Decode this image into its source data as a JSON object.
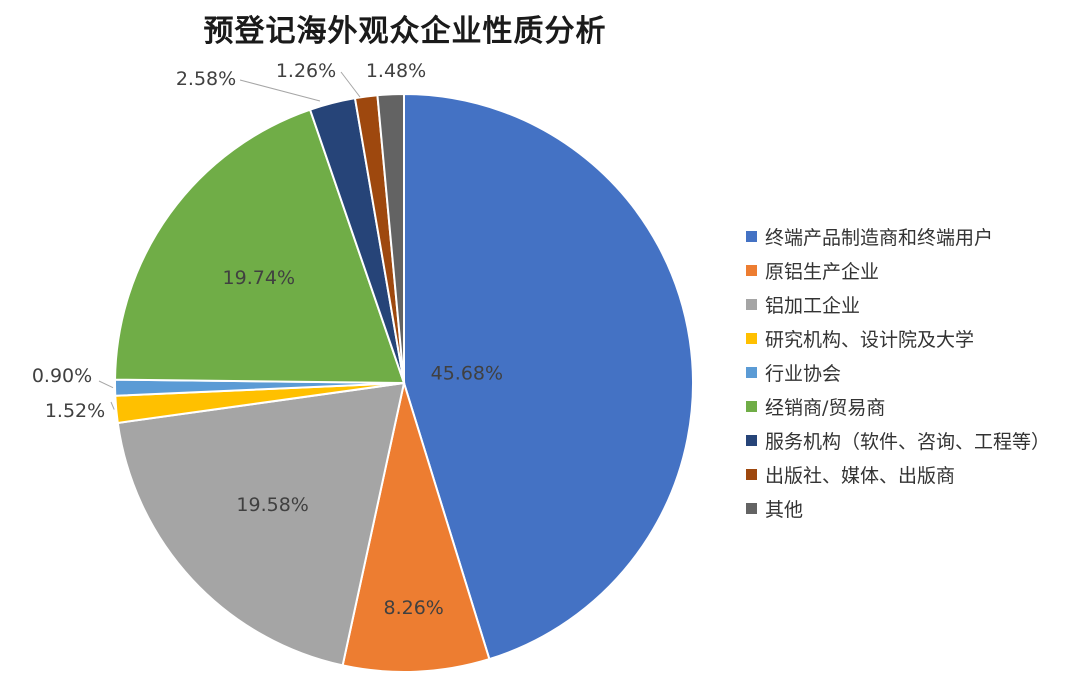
{
  "chart_data": {
    "type": "pie",
    "title": "预登记海外观众企业性质分析",
    "start_angle_deg": 0,
    "direction": "clockwise",
    "legend_position": "right",
    "slices": [
      {
        "name": "终端产品制造商和终端用户",
        "value": 45.68,
        "label": "45.68%",
        "color": "#4472C4"
      },
      {
        "name": "原铝生产企业",
        "value": 8.26,
        "label": "8.26%",
        "color": "#ED7D31"
      },
      {
        "name": "铝加工企业",
        "value": 19.58,
        "label": "19.58%",
        "color": "#A5A5A5"
      },
      {
        "name": "研究机构、设计院及大学",
        "value": 1.52,
        "label": "1.52%",
        "color": "#FFC000"
      },
      {
        "name": "行业协会",
        "value": 0.9,
        "label": "0.90%",
        "color": "#5B9BD5"
      },
      {
        "name": "经销商/贸易商",
        "value": 19.74,
        "label": "19.74%",
        "color": "#70AD47"
      },
      {
        "name": "服务机构（软件、咨询、工程等）",
        "value": 2.58,
        "label": "2.58%",
        "color": "#264478"
      },
      {
        "name": "出版社、媒体、出版商",
        "value": 1.26,
        "label": "1.26%",
        "color": "#9E480E"
      },
      {
        "name": "其他",
        "value": 1.48,
        "label": "1.48%",
        "color": "#636363"
      }
    ]
  }
}
